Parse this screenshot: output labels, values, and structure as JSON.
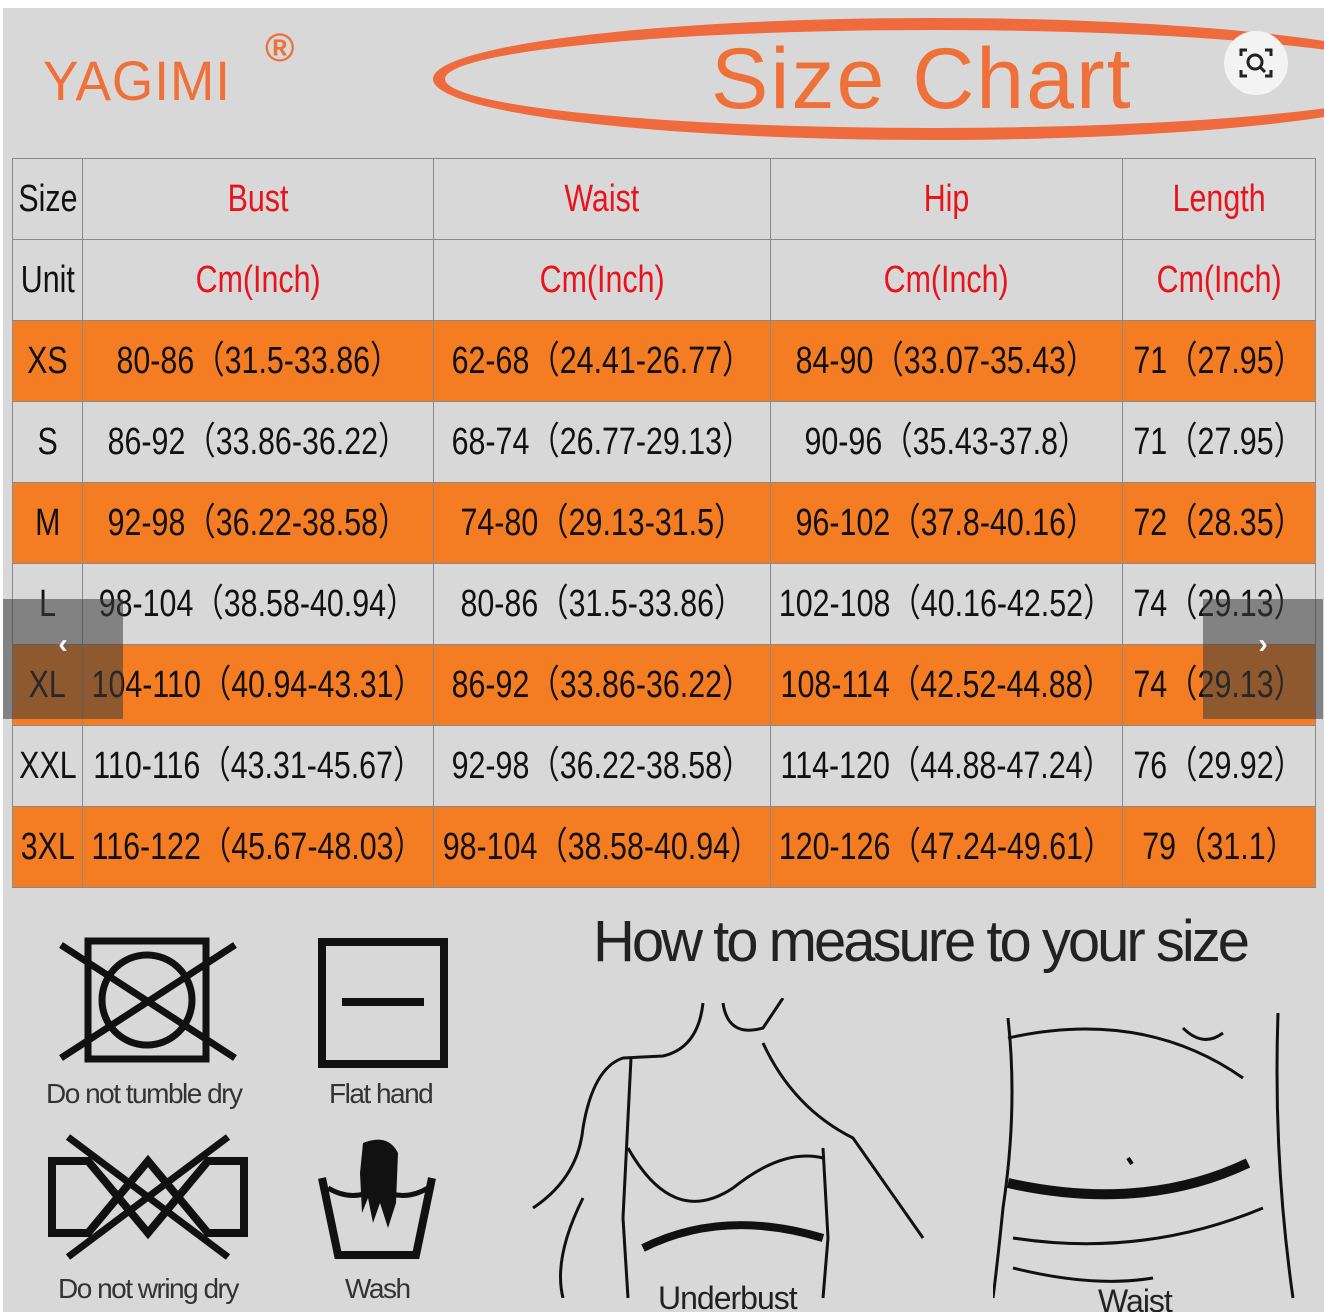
{
  "brand": {
    "name": "YAGIMI",
    "registered": "®"
  },
  "title": "Size Chart",
  "colors": {
    "accent": "#f47c22",
    "header_text": "#e8131b",
    "background": "#d8d8d8"
  },
  "table": {
    "headers": [
      "Size",
      "Bust",
      "Waist",
      "Hip",
      "Length"
    ],
    "units": [
      "Unit",
      "Cm(Inch)",
      "Cm(Inch)",
      "Cm(Inch)",
      "Cm(Inch)"
    ],
    "rows": [
      [
        "XS",
        "80-86（31.5-33.86）",
        "62-68（24.41-26.77）",
        "84-90（33.07-35.43）",
        "71（27.95）"
      ],
      [
        "S",
        "86-92（33.86-36.22）",
        "68-74（26.77-29.13）",
        "90-96（35.43-37.8）",
        "71（27.95）"
      ],
      [
        "M",
        "92-98（36.22-38.58）",
        "74-80（29.13-31.5）",
        "96-102（37.8-40.16）",
        "72（28.35）"
      ],
      [
        "L",
        "98-104（38.58-40.94）",
        "80-86（31.5-33.86）",
        "102-108（40.16-42.52）",
        "74（29.13）"
      ],
      [
        "XL",
        "104-110（40.94-43.31）",
        "86-92（33.86-36.22）",
        "108-114（42.52-44.88）",
        "74（29.13）"
      ],
      [
        "XXL",
        "110-116（43.31-45.67）",
        "92-98（36.22-38.58）",
        "114-120（44.88-47.24）",
        "76（29.92）"
      ],
      [
        "3XL",
        "116-122（45.67-48.03）",
        "98-104（38.58-40.94）",
        "120-126（47.24-49.61）",
        "79（31.1）"
      ]
    ]
  },
  "care": [
    "Do not tumble dry",
    "Flat hand",
    "Do not wring dry",
    "Wash"
  ],
  "howto": {
    "title": "How to measure to your size",
    "figures": [
      "Underbust",
      "Waist"
    ]
  },
  "controls": {
    "prev_icon": "chevron-left-icon",
    "next_icon": "chevron-right-icon",
    "lens_icon": "visual-search-icon",
    "prev": "‹",
    "next": "›"
  }
}
